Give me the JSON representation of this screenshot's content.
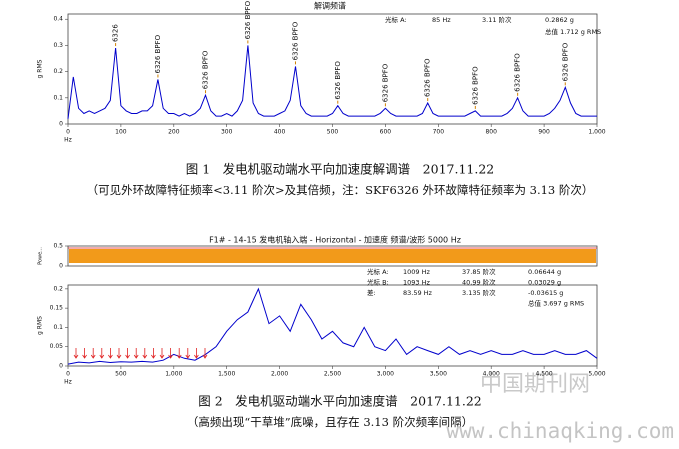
{
  "chart_data": [
    {
      "type": "line",
      "title": "解调频谱",
      "xlabel": "Hz",
      "ylabel": "g RMS",
      "color": "#0000cc",
      "x": [
        0,
        10,
        20,
        30,
        40,
        50,
        60,
        70,
        80,
        90,
        100,
        110,
        120,
        130,
        140,
        150,
        160,
        170,
        180,
        190,
        200,
        210,
        220,
        230,
        240,
        250,
        260,
        270,
        280,
        290,
        300,
        310,
        320,
        330,
        340,
        350,
        360,
        370,
        380,
        390,
        400,
        410,
        420,
        430,
        440,
        450,
        460,
        470,
        480,
        490,
        500,
        510,
        520,
        530,
        540,
        550,
        560,
        570,
        580,
        590,
        600,
        610,
        620,
        630,
        640,
        650,
        660,
        670,
        680,
        690,
        700,
        710,
        720,
        730,
        740,
        750,
        760,
        770,
        780,
        790,
        800,
        810,
        820,
        830,
        840,
        850,
        860,
        870,
        880,
        890,
        900,
        910,
        920,
        930,
        940,
        950,
        960,
        970,
        980,
        990,
        1000
      ],
      "series": [
        {
          "values": [
            0.02,
            0.18,
            0.06,
            0.04,
            0.05,
            0.04,
            0.05,
            0.06,
            0.09,
            0.29,
            0.07,
            0.05,
            0.04,
            0.04,
            0.05,
            0.05,
            0.07,
            0.17,
            0.06,
            0.04,
            0.04,
            0.03,
            0.04,
            0.03,
            0.04,
            0.06,
            0.11,
            0.05,
            0.03,
            0.03,
            0.04,
            0.03,
            0.05,
            0.09,
            0.3,
            0.08,
            0.04,
            0.03,
            0.03,
            0.03,
            0.04,
            0.05,
            0.09,
            0.22,
            0.07,
            0.04,
            0.03,
            0.03,
            0.03,
            0.03,
            0.04,
            0.07,
            0.04,
            0.03,
            0.03,
            0.03,
            0.03,
            0.03,
            0.03,
            0.04,
            0.06,
            0.04,
            0.03,
            0.03,
            0.03,
            0.03,
            0.03,
            0.04,
            0.08,
            0.04,
            0.03,
            0.03,
            0.03,
            0.03,
            0.03,
            0.03,
            0.04,
            0.05,
            0.03,
            0.03,
            0.03,
            0.03,
            0.03,
            0.04,
            0.06,
            0.1,
            0.05,
            0.03,
            0.03,
            0.03,
            0.03,
            0.04,
            0.06,
            0.09,
            0.14,
            0.08,
            0.04,
            0.03,
            0.03,
            0.03,
            0.03
          ]
        }
      ],
      "xlim": [
        0,
        1000
      ],
      "xticks": [
        0,
        100,
        200,
        300,
        400,
        500,
        600,
        700,
        800,
        900,
        {
          "value": 1000,
          "label": "1,000"
        }
      ],
      "ylim": [
        0,
        0.42
      ],
      "yticks": [
        0,
        0.1,
        0.2,
        0.3,
        0.4
      ],
      "annotations": [
        {
          "label": "6326",
          "x": 90
        },
        {
          "label": "6326 BPFO",
          "x": 170
        },
        {
          "label": "6326 BPFO",
          "x": 260
        },
        {
          "label": "6326 BPFO",
          "x": 340
        },
        {
          "label": "6326 BPFO",
          "x": 430
        },
        {
          "label": "6326 BPFO",
          "x": 510
        },
        {
          "label": "6326 BPFO",
          "x": 600
        },
        {
          "label": "6326 BPFO",
          "x": 680
        },
        {
          "label": "6326 BPFO",
          "x": 770
        },
        {
          "label": "6326 BPFO",
          "x": 850
        },
        {
          "label": "6326 BPFO",
          "x": 940
        }
      ],
      "readout": [
        [
          "光标 A:",
          "85 Hz",
          "3.11 阶次",
          "0.2862 g"
        ],
        [
          "总值 1.712 g RMS"
        ]
      ]
    },
    {
      "type": "line",
      "title": "F1# - 14-15 发电机轴入端 - Horizontal - 加速度 频谱/波形 5000 Hz",
      "xlabel": "Hz",
      "ylabel": "g RMS",
      "color": "#0000cc",
      "x": [
        0,
        100,
        200,
        300,
        400,
        500,
        600,
        700,
        800,
        900,
        1000,
        1100,
        1200,
        1300,
        1400,
        1500,
        1600,
        1700,
        1800,
        1900,
        2000,
        2100,
        2200,
        2300,
        2400,
        2500,
        2600,
        2700,
        2800,
        2900,
        3000,
        3100,
        3200,
        3300,
        3400,
        3500,
        3600,
        3700,
        3800,
        3900,
        4000,
        4100,
        4200,
        4300,
        4400,
        4500,
        4600,
        4700,
        4800,
        4900,
        5000
      ],
      "series": [
        {
          "values": [
            0.005,
            0.01,
            0.008,
            0.012,
            0.009,
            0.011,
            0.01,
            0.012,
            0.01,
            0.015,
            0.03,
            0.02,
            0.015,
            0.03,
            0.05,
            0.09,
            0.12,
            0.14,
            0.2,
            0.11,
            0.13,
            0.09,
            0.16,
            0.12,
            0.07,
            0.09,
            0.06,
            0.05,
            0.1,
            0.05,
            0.04,
            0.07,
            0.03,
            0.05,
            0.04,
            0.03,
            0.05,
            0.03,
            0.04,
            0.03,
            0.04,
            0.03,
            0.03,
            0.04,
            0.03,
            0.03,
            0.04,
            0.03,
            0.03,
            0.04,
            0.02
          ]
        }
      ],
      "xlim": [
        0,
        5000
      ],
      "xticks": [
        0,
        500,
        {
          "value": 1000,
          "label": "1,000"
        },
        {
          "value": 1500,
          "label": "1,500"
        },
        {
          "value": 2000,
          "label": "2,000"
        },
        {
          "value": 2500,
          "label": "2,500"
        },
        {
          "value": 3000,
          "label": "3,000"
        },
        {
          "value": 3500,
          "label": "3,500"
        },
        {
          "value": 4000,
          "label": "4,000"
        },
        {
          "value": 4500,
          "label": "4,500"
        },
        {
          "value": 5000,
          "label": "5,000"
        }
      ],
      "ylim": [
        0,
        0.21
      ],
      "yticks": [
        0,
        0.05,
        0.1,
        0.15,
        0.2
      ],
      "power_panel": {
        "label": "Powe...",
        "yticks": [
          0,
          0.5
        ]
      },
      "readout": [
        [
          "光标 A:",
          "1009 Hz",
          "37.85 阶次",
          "0.06644 g"
        ],
        [
          "光标 B:",
          "1093 Hz",
          "40.99 阶次",
          "0.03029 g"
        ],
        [
          "差:",
          "83.59 Hz",
          "3.135 阶次",
          "-0.03615 g"
        ],
        [
          "总值 3.697 g RMS"
        ]
      ]
    }
  ],
  "captions": [
    {
      "title": "图 1　发电机驱动端水平向加速度解调谱　2017.11.22",
      "note": "（可见外环故障特征频率<3.11 阶次>及其倍频，注：SKF6326 外环故障特征频率为 3.13 阶次）"
    },
    {
      "title": "图 2　发电机驱动端水平向加速度谱　2017.11.22",
      "note": "（高频出现“干草堆”底噪，且存在 3.13 阶次频率间隔）"
    }
  ],
  "watermark": {
    "name": "中国期刊网",
    "url": "www.chinaqking.com"
  }
}
